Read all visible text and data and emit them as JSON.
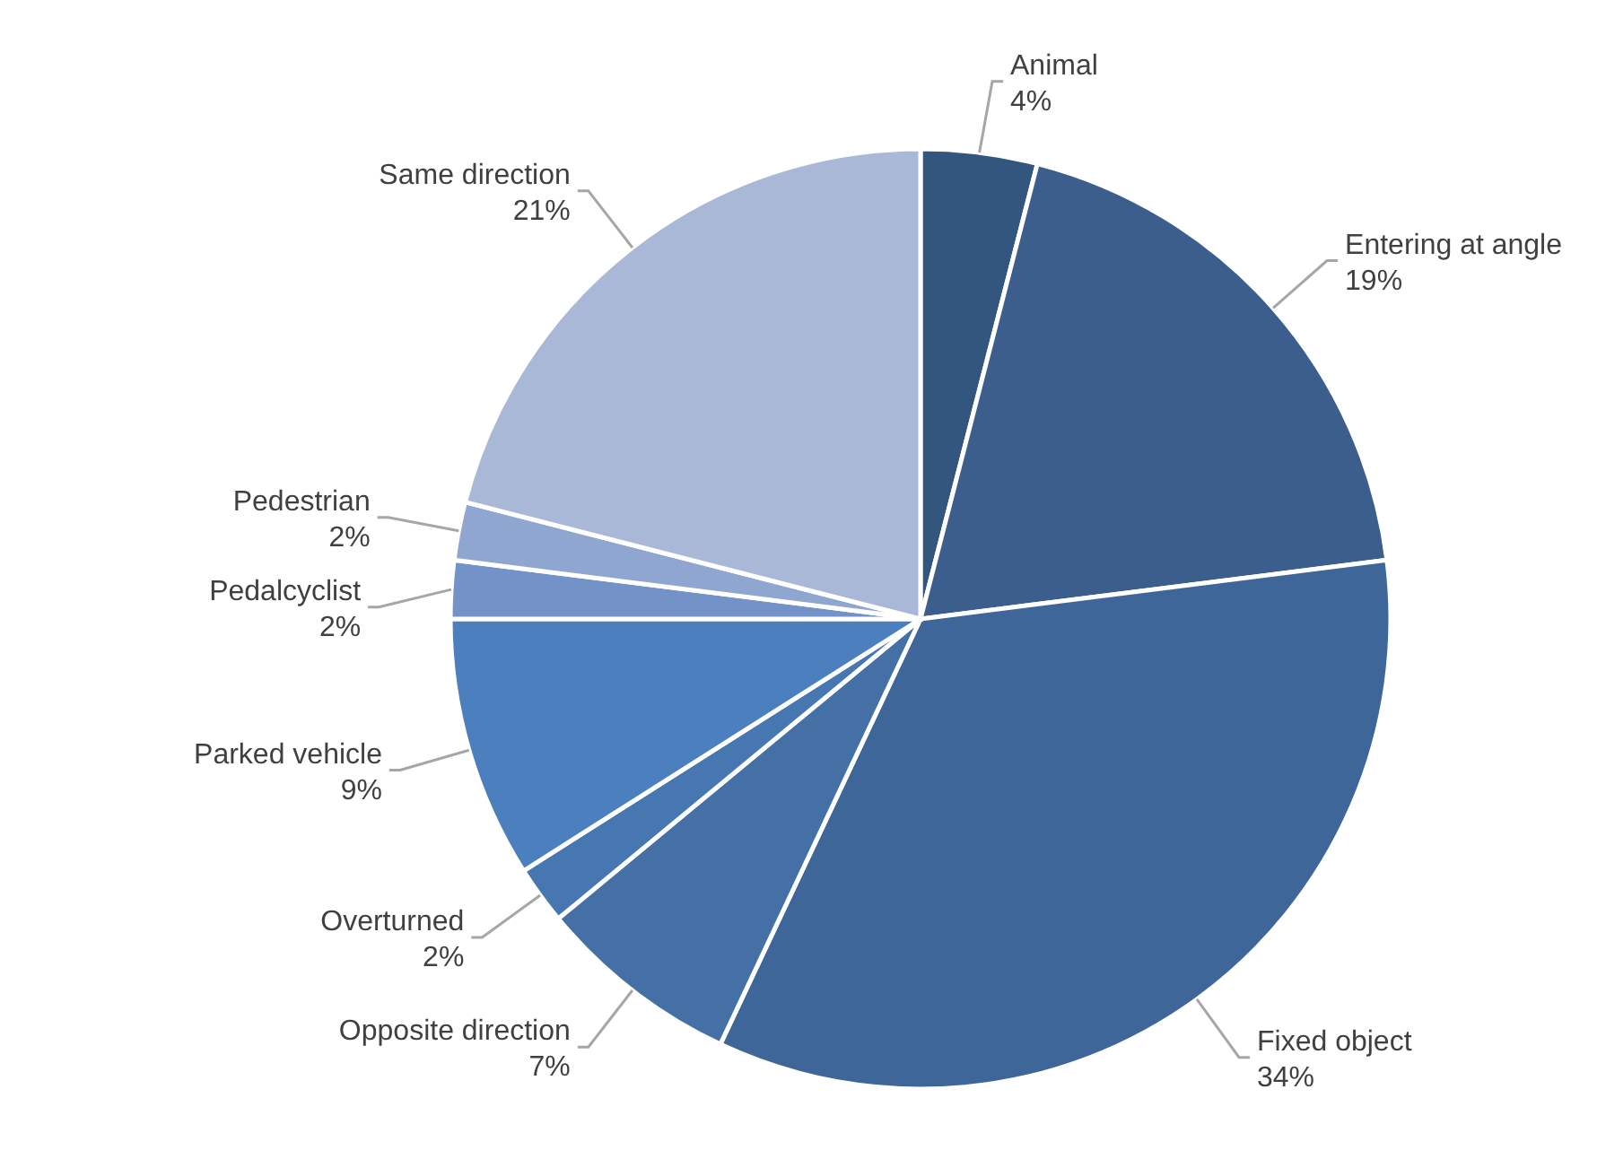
{
  "chart_data": {
    "type": "pie",
    "categories": [
      "Animal",
      "Entering at angle",
      "Fixed object",
      "Opposite direction",
      "Overturned",
      "Parked vehicle",
      "Pedalcyclist",
      "Pedestrian",
      "Same direction"
    ],
    "values": [
      4,
      19,
      34,
      7,
      2,
      9,
      2,
      2,
      21
    ],
    "colors": [
      "#33567f",
      "#3b5e8c",
      "#3f6698",
      "#4470a5",
      "#4677b1",
      "#4c7fbd",
      "#7393c8",
      "#8fa6d1",
      "#aab8d8"
    ],
    "value_labels": [
      "4%",
      "19%",
      "34%",
      "7%",
      "2%",
      "9%",
      "2%",
      "2%",
      "21%"
    ]
  }
}
